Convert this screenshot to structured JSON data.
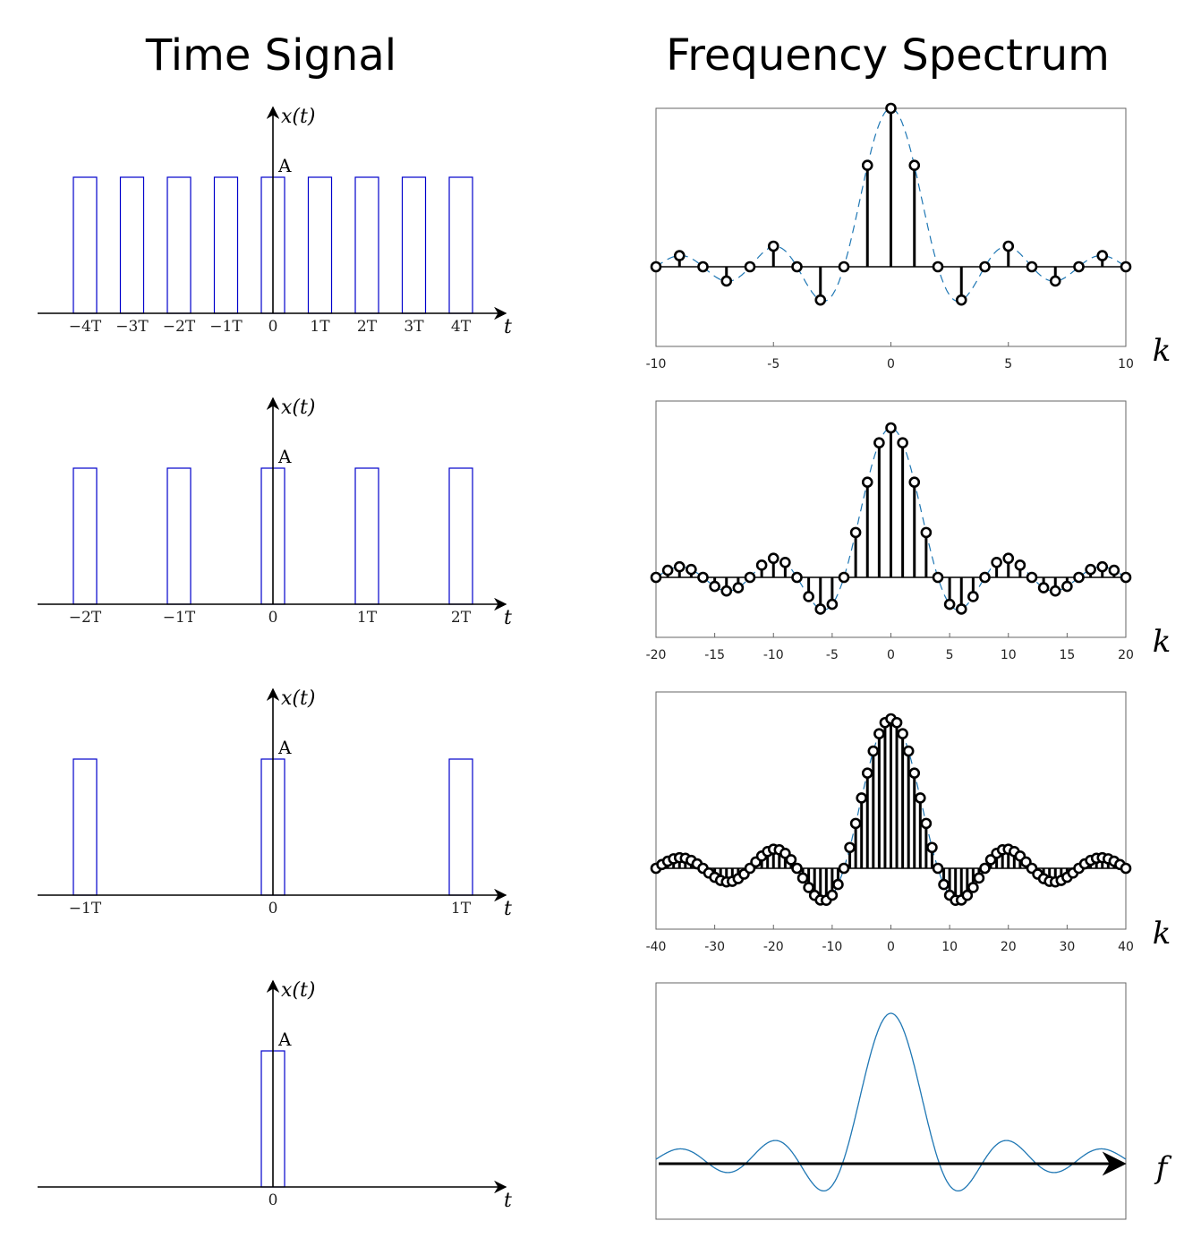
{
  "titles": {
    "left": "Time Signal",
    "right": "Frequency Spectrum"
  },
  "colors": {
    "pulse": "#0000cc",
    "stem": "#000000",
    "marker_fill": "#ffffff",
    "envelope": "#1f77b4",
    "axis": "#000000",
    "frame": "#666666"
  },
  "time_signal": {
    "y_label": "x(t)",
    "x_label": "t",
    "amplitude_label": "A"
  },
  "chart_data": [
    {
      "type": "line",
      "panel": "time-1",
      "series_style": "rectangular pulse train",
      "pulse_width_T": 0.25,
      "pulse_centers_T": [
        -4,
        -3,
        -2,
        -1,
        0,
        1,
        2,
        3,
        4
      ],
      "tick_labels": [
        "−4T",
        "−3T",
        "−2T",
        "−1T",
        "0",
        "1T",
        "2T",
        "3T",
        "4T"
      ],
      "tick_positions_T": [
        -4,
        -3,
        -2,
        -1,
        0,
        1,
        2,
        3,
        4
      ],
      "xlim_T": [
        -5,
        5
      ],
      "ylabel": "x(t)",
      "xlabel": "t",
      "amplitude": "A"
    },
    {
      "type": "line",
      "panel": "time-2",
      "series_style": "rectangular pulse train",
      "pulse_width_T": 0.25,
      "pulse_centers_T": [
        -2,
        -1,
        0,
        1,
        2
      ],
      "tick_labels": [
        "−2T",
        "−1T",
        "0",
        "1T",
        "2T"
      ],
      "tick_positions_T": [
        -2,
        -1,
        0,
        1,
        2
      ],
      "xlim_T": [
        -2.5,
        2.5
      ],
      "ylabel": "x(t)",
      "xlabel": "t",
      "amplitude": "A"
    },
    {
      "type": "line",
      "panel": "time-3",
      "series_style": "rectangular pulse train",
      "pulse_width_T": 0.125,
      "pulse_centers_T": [
        -1,
        0,
        1
      ],
      "tick_labels": [
        "−1T",
        "0",
        "1T"
      ],
      "tick_positions_T": [
        -1,
        0,
        1
      ],
      "xlim_T": [
        -1.25,
        1.25
      ],
      "ylabel": "x(t)",
      "xlabel": "t",
      "amplitude": "A"
    },
    {
      "type": "line",
      "panel": "time-4",
      "series_style": "single rectangular pulse",
      "pulse_centers_T": [
        0
      ],
      "tick_labels": [
        "0"
      ],
      "tick_positions_T": [
        0
      ],
      "ylabel": "x(t)",
      "xlabel": "t",
      "amplitude": "A"
    },
    {
      "type": "scatter",
      "panel": "freq-1",
      "series_style": "stem",
      "x_range": [
        -10,
        10
      ],
      "xlim": [
        -10,
        10
      ],
      "ylim": [
        -0.35,
        1.0
      ],
      "ticks": [
        -10,
        -5,
        0,
        5,
        10
      ],
      "tick_labels": [
        "-10",
        "-5",
        "0",
        "5",
        "10"
      ],
      "xlabel": "k",
      "k": [
        -10,
        -9,
        -8,
        -7,
        -6,
        -5,
        -4,
        -3,
        -2,
        -1,
        0,
        1,
        2,
        3,
        4,
        5,
        6,
        7,
        8,
        9,
        10
      ],
      "values": [
        0,
        0.07,
        0,
        -0.09,
        0,
        0.13,
        0,
        -0.21,
        0,
        0.64,
        1,
        0.64,
        0,
        -0.21,
        0,
        0.13,
        0,
        -0.09,
        0,
        0.07,
        0
      ],
      "envelope": "sinc, zeros at multiples of 2"
    },
    {
      "type": "scatter",
      "panel": "freq-2",
      "series_style": "stem",
      "x_range": [
        -20,
        20
      ],
      "xlim": [
        -20,
        20
      ],
      "ylim": [
        -0.35,
        1.0
      ],
      "ticks": [
        -20,
        -15,
        -10,
        -5,
        0,
        5,
        10,
        15,
        20
      ],
      "tick_labels": [
        "-20",
        "-15",
        "-10",
        "-5",
        "0",
        "5",
        "10",
        "15",
        "20"
      ],
      "xlabel": "k",
      "envelope": "sinc, zeros at multiples of 4",
      "zero_spacing": 4
    },
    {
      "type": "scatter",
      "panel": "freq-3",
      "series_style": "stem",
      "x_range": [
        -40,
        40
      ],
      "xlim": [
        -40,
        40
      ],
      "ylim": [
        -0.35,
        1.0
      ],
      "ticks": [
        -40,
        -30,
        -20,
        -10,
        0,
        10,
        20,
        30,
        40
      ],
      "tick_labels": [
        "-40",
        "-30",
        "-20",
        "-10",
        "0",
        "10",
        "20",
        "30",
        "40"
      ],
      "xlabel": "k",
      "envelope": "sinc, zeros at multiples of 8",
      "zero_spacing": 8
    },
    {
      "type": "line",
      "panel": "freq-4",
      "series_style": "continuous sinc",
      "xlabel": "f",
      "envelope": "sinc, continuous spectrum"
    }
  ]
}
